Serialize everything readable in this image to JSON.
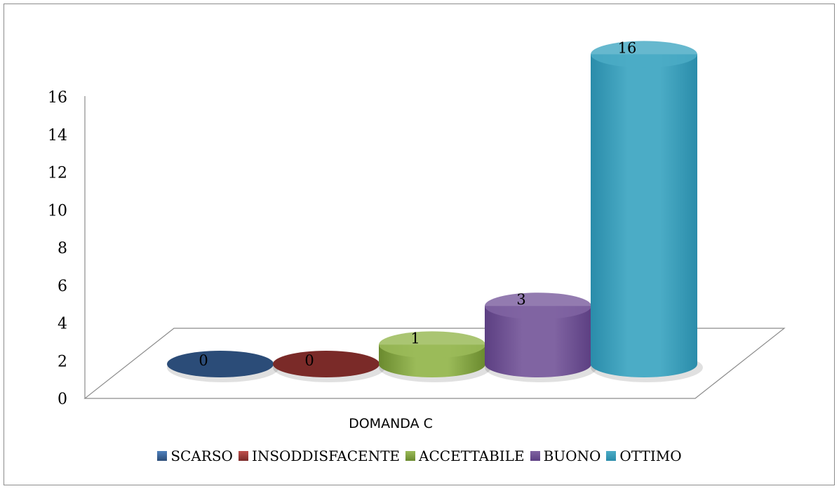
{
  "chart_data": {
    "type": "bar",
    "variant": "3d-cylinder",
    "categories": [
      "DOMANDA C"
    ],
    "series": [
      {
        "name": "SCARSO",
        "values": [
          0
        ],
        "color": "#4F81BD",
        "dark": "#2B4C78"
      },
      {
        "name": "INSODDISFACENTE",
        "values": [
          0
        ],
        "color": "#C0504D",
        "dark": "#7A2A28"
      },
      {
        "name": "ACCETTABILE",
        "values": [
          1
        ],
        "color": "#9BBB59",
        "dark": "#6A8A2E"
      },
      {
        "name": "BUONO",
        "values": [
          3
        ],
        "color": "#8064A2",
        "dark": "#5C3F82"
      },
      {
        "name": "OTTIMO",
        "values": [
          16
        ],
        "color": "#4BACC6",
        "dark": "#2A8CAA"
      }
    ],
    "ylim": [
      0,
      16
    ],
    "yticks": [
      "0",
      "2",
      "4",
      "6",
      "8",
      "10",
      "12",
      "14",
      "16"
    ],
    "data_labels": true,
    "grid": false,
    "legend_position": "bottom"
  }
}
